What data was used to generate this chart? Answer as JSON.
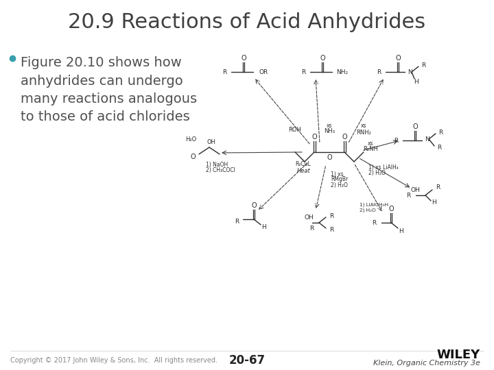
{
  "title": "20.9 Reactions of Acid Anhydrides",
  "bullet_text": "Figure 20.10 shows how\nanhydrides can undergo\nmany reactions analogous\nto those of acid chlorides",
  "bullet_color": "#3a9fac",
  "title_color": "#404040",
  "body_color": "#505050",
  "footer_left": "Copyright © 2017 John Wiley & Sons, Inc.  All rights reserved.",
  "footer_center": "20-67",
  "footer_right_line1": "WILEY",
  "footer_right_line2": "Klein, Organic Chemistry 3e",
  "bg_color": "#ffffff",
  "title_fontsize": 22,
  "bullet_fontsize": 14,
  "footer_fontsize": 7,
  "page_num_fontsize": 12
}
